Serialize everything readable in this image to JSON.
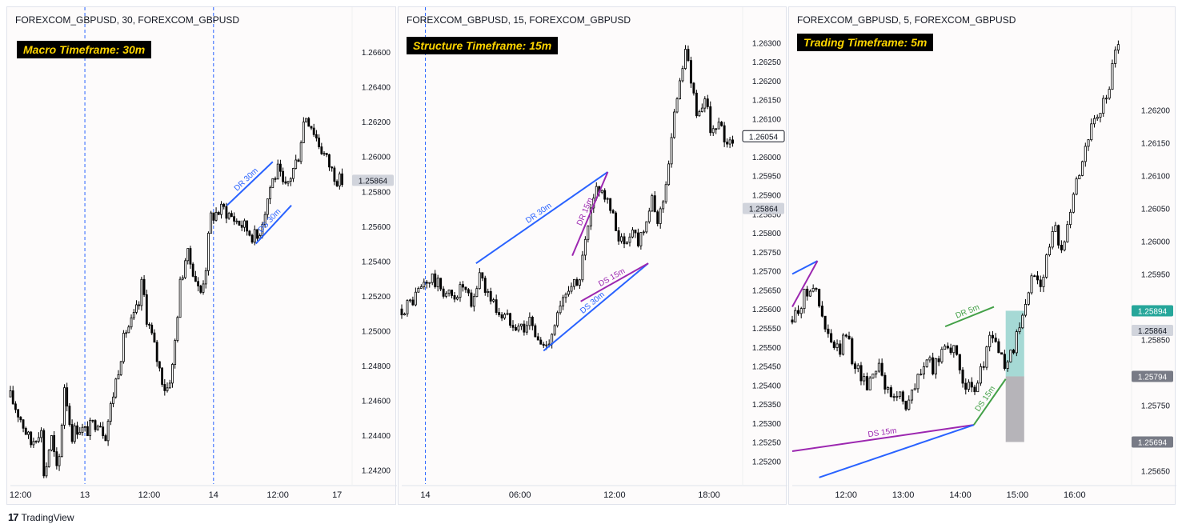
{
  "brand": {
    "logo": "17",
    "name": "TradingView"
  },
  "colors": {
    "up": "#ffffff",
    "down": "#000000",
    "wick": "#000000",
    "dr_blue": "#2962ff",
    "ds_purple": "#9c27b0",
    "ds_green": "#43a047",
    "session_line": "#2962ff",
    "zone_green": "#80cbc4",
    "zone_grey": "#a9a7ad"
  },
  "panels": [
    {
      "symbol": "FOREXCOM_GBPUSD, 30, FOREXCOM_GBPUSD",
      "timeframe_label": "Macro Timeframe: 30m",
      "chart_data": {
        "type": "candlestick",
        "y_ticks": [
          "1.26600",
          "1.26400",
          "1.26200",
          "1.26000",
          "1.25800",
          "1.25600",
          "1.25400",
          "1.25200",
          "1.25000",
          "1.24800",
          "1.24600",
          "1.24400",
          "1.24200"
        ],
        "ylim": [
          1.2412,
          1.2672
        ],
        "x_ticks": [
          "12:00",
          "13",
          "12:00",
          "14",
          "12:00",
          "17"
        ],
        "x_positions": [
          0.03,
          0.22,
          0.41,
          0.6,
          0.79,
          0.965
        ],
        "session_lines": [
          0.22,
          0.6
        ],
        "price_labels": [
          {
            "value": "1.25864",
            "price": 1.25864,
            "style": "grey"
          }
        ],
        "annotations": [
          {
            "text": "DR 30m",
            "color": "blue",
            "from": [
              0.64,
              1.2572
            ],
            "to": [
              0.775,
              1.2597
            ]
          },
          {
            "text": "DS 30m",
            "color": "blue",
            "from": [
              0.725,
              1.255
            ],
            "to": [
              0.83,
              1.2572
            ]
          }
        ],
        "path": [
          [
            0.0,
            1.2462
          ],
          [
            0.03,
            1.245
          ],
          [
            0.06,
            1.2435
          ],
          [
            0.09,
            1.2445
          ],
          [
            0.1,
            1.2415
          ],
          [
            0.12,
            1.244
          ],
          [
            0.14,
            1.2415
          ],
          [
            0.16,
            1.247
          ],
          [
            0.18,
            1.244
          ],
          [
            0.2,
            1.2445
          ],
          [
            0.22,
            1.2442
          ],
          [
            0.24,
            1.2445
          ],
          [
            0.26,
            1.245
          ],
          [
            0.28,
            1.244
          ],
          [
            0.3,
            1.246
          ],
          [
            0.32,
            1.248
          ],
          [
            0.34,
            1.25
          ],
          [
            0.36,
            1.2505
          ],
          [
            0.38,
            1.2515
          ],
          [
            0.39,
            1.253
          ],
          [
            0.4,
            1.251
          ],
          [
            0.42,
            1.2495
          ],
          [
            0.44,
            1.2478
          ],
          [
            0.46,
            1.2465
          ],
          [
            0.48,
            1.248
          ],
          [
            0.5,
            1.2525
          ],
          [
            0.52,
            1.2545
          ],
          [
            0.54,
            1.2535
          ],
          [
            0.56,
            1.252
          ],
          [
            0.58,
            1.254
          ],
          [
            0.59,
            1.2565
          ],
          [
            0.61,
            1.2568
          ],
          [
            0.63,
            1.257
          ],
          [
            0.65,
            1.2566
          ],
          [
            0.67,
            1.2563
          ],
          [
            0.69,
            1.256
          ],
          [
            0.71,
            1.2556
          ],
          [
            0.73,
            1.2553
          ],
          [
            0.75,
            1.2568
          ],
          [
            0.77,
            1.2585
          ],
          [
            0.79,
            1.2592
          ],
          [
            0.81,
            1.258
          ],
          [
            0.83,
            1.259
          ],
          [
            0.85,
            1.26
          ],
          [
            0.87,
            1.2625
          ],
          [
            0.89,
            1.2618
          ],
          [
            0.91,
            1.2608
          ],
          [
            0.93,
            1.26
          ],
          [
            0.95,
            1.2592
          ],
          [
            0.97,
            1.2586
          ],
          [
            0.98,
            1.2586
          ]
        ]
      }
    },
    {
      "symbol": "FOREXCOM_GBPUSD, 15, FOREXCOM_GBPUSD",
      "timeframe_label": "Structure Timeframe: 15m",
      "chart_data": {
        "type": "candlestick",
        "y_ticks": [
          "1.26300",
          "1.26250",
          "1.26200",
          "1.26150",
          "1.26100",
          "1.26050",
          "1.26000",
          "1.25950",
          "1.25900",
          "1.25850",
          "1.25800",
          "1.25750",
          "1.25700",
          "1.25650",
          "1.25600",
          "1.25550",
          "1.25500",
          "1.25450",
          "1.25400",
          "1.25350",
          "1.25300",
          "1.25250",
          "1.25200"
        ],
        "ylim": [
          1.2514,
          1.2633
        ],
        "x_ticks": [
          "14",
          "06:00",
          "12:00",
          "18:00"
        ],
        "x_positions": [
          0.07,
          0.35,
          0.63,
          0.91
        ],
        "session_lines": [
          0.07
        ],
        "price_labels": [
          {
            "value": "1.26054",
            "price": 1.26054,
            "style": "outline"
          },
          {
            "value": "1.25864",
            "price": 1.25864,
            "style": "grey"
          }
        ],
        "annotations": [
          {
            "text": "DR 30m",
            "color": "blue",
            "from": [
              0.22,
              1.2572
            ],
            "to": [
              0.61,
              1.2596
            ]
          },
          {
            "text": "DS 30m",
            "color": "blue",
            "from": [
              0.42,
              1.2549
            ],
            "to": [
              0.73,
              1.2572
            ]
          },
          {
            "text": "DR 15m",
            "color": "purple",
            "from": [
              0.505,
              1.2574
            ],
            "to": [
              0.61,
              1.2596
            ]
          },
          {
            "text": "DS 15m",
            "color": "purple",
            "from": [
              0.53,
              1.2562
            ],
            "to": [
              0.73,
              1.2572
            ]
          }
        ],
        "path": [
          [
            0.0,
            1.256
          ],
          [
            0.03,
            1.2562
          ],
          [
            0.06,
            1.2566
          ],
          [
            0.09,
            1.2568
          ],
          [
            0.12,
            1.2565
          ],
          [
            0.15,
            1.2563
          ],
          [
            0.18,
            1.2566
          ],
          [
            0.21,
            1.256
          ],
          [
            0.23,
            1.257
          ],
          [
            0.25,
            1.2565
          ],
          [
            0.28,
            1.256
          ],
          [
            0.3,
            1.2558
          ],
          [
            0.33,
            1.2557
          ],
          [
            0.36,
            1.2555
          ],
          [
            0.38,
            1.2557
          ],
          [
            0.4,
            1.2552
          ],
          [
            0.42,
            1.255
          ],
          [
            0.44,
            1.2553
          ],
          [
            0.46,
            1.2558
          ],
          [
            0.48,
            1.2562
          ],
          [
            0.5,
            1.2568
          ],
          [
            0.52,
            1.2565
          ],
          [
            0.54,
            1.2575
          ],
          [
            0.56,
            1.2585
          ],
          [
            0.58,
            1.2593
          ],
          [
            0.6,
            1.259
          ],
          [
            0.62,
            1.2585
          ],
          [
            0.64,
            1.258
          ],
          [
            0.66,
            1.2576
          ],
          [
            0.68,
            1.2582
          ],
          [
            0.7,
            1.2578
          ],
          [
            0.72,
            1.2583
          ],
          [
            0.74,
            1.2588
          ],
          [
            0.76,
            1.2583
          ],
          [
            0.78,
            1.2592
          ],
          [
            0.8,
            1.2605
          ],
          [
            0.82,
            1.262
          ],
          [
            0.84,
            1.2628
          ],
          [
            0.86,
            1.2618
          ],
          [
            0.88,
            1.261
          ],
          [
            0.9,
            1.2614
          ],
          [
            0.92,
            1.2606
          ],
          [
            0.94,
            1.2608
          ],
          [
            0.96,
            1.2604
          ],
          [
            0.98,
            1.2605
          ]
        ]
      }
    },
    {
      "symbol": "FOREXCOM_GBPUSD, 5, FOREXCOM_GBPUSD",
      "timeframe_label": "Trading Timeframe: 5m",
      "chart_data": {
        "type": "candlestick",
        "y_ticks": [
          "1.26200",
          "1.26150",
          "1.26100",
          "1.26050",
          "1.26000",
          "1.25950",
          "1.25850",
          "1.25750",
          "1.25650"
        ],
        "y_tick_values": [
          1.262,
          1.2615,
          1.261,
          1.2605,
          1.26,
          1.2595,
          1.2585,
          1.2575,
          1.2565
        ],
        "ylim": [
          1.2563,
          1.2632
        ],
        "x_ticks": [
          "12:00",
          "13:00",
          "14:00",
          "15:00",
          "16:00"
        ],
        "x_positions": [
          0.16,
          0.33,
          0.5,
          0.67,
          0.84
        ],
        "session_lines": [],
        "price_labels": [
          {
            "value": "1.25894",
            "price": 1.25894,
            "style": "teal"
          },
          {
            "value": "1.25864",
            "price": 1.25864,
            "style": "grey"
          },
          {
            "value": "1.25794",
            "price": 1.25794,
            "style": "dark"
          },
          {
            "value": "1.25694",
            "price": 1.25694,
            "style": "dark"
          }
        ],
        "zones": [
          {
            "color": "green",
            "x0": 0.635,
            "x1": 0.69,
            "p0": 1.25794,
            "p1": 1.25894
          },
          {
            "color": "grey",
            "x0": 0.635,
            "x1": 0.69,
            "p0": 1.25694,
            "p1": 1.25794
          }
        ],
        "annotations": [
          {
            "text": "",
            "color": "blue",
            "from": [
              0.0,
              1.2595
            ],
            "to": [
              0.075,
              1.2597
            ]
          },
          {
            "text": "",
            "color": "purple",
            "from": [
              0.0,
              1.259
            ],
            "to": [
              0.075,
              1.2597
            ]
          },
          {
            "text": "DR 5m",
            "color": "green",
            "from": [
              0.455,
              1.2587
            ],
            "to": [
              0.6,
              1.259
            ]
          },
          {
            "text": "DS 15m",
            "color": "purple",
            "from": [
              0.0,
              1.2568
            ],
            "to": [
              0.54,
              1.2572
            ]
          },
          {
            "text": "",
            "color": "blue",
            "from": [
              0.08,
              1.2564
            ],
            "to": [
              0.54,
              1.2572
            ]
          },
          {
            "text": "DS 15m",
            "color": "green",
            "from": [
              0.54,
              1.2572
            ],
            "to": [
              0.635,
              1.2579
            ]
          }
        ],
        "path": [
          [
            0.0,
            1.2588
          ],
          [
            0.02,
            1.259
          ],
          [
            0.04,
            1.2592
          ],
          [
            0.06,
            1.2594
          ],
          [
            0.08,
            1.259
          ],
          [
            0.1,
            1.2586
          ],
          [
            0.12,
            1.2584
          ],
          [
            0.14,
            1.2583
          ],
          [
            0.16,
            1.2586
          ],
          [
            0.18,
            1.2582
          ],
          [
            0.2,
            1.258
          ],
          [
            0.22,
            1.2578
          ],
          [
            0.24,
            1.258
          ],
          [
            0.26,
            1.2582
          ],
          [
            0.28,
            1.2577
          ],
          [
            0.3,
            1.2576
          ],
          [
            0.32,
            1.2577
          ],
          [
            0.34,
            1.2575
          ],
          [
            0.36,
            1.2577
          ],
          [
            0.38,
            1.258
          ],
          [
            0.4,
            1.2582
          ],
          [
            0.42,
            1.258
          ],
          [
            0.44,
            1.2583
          ],
          [
            0.46,
            1.2585
          ],
          [
            0.48,
            1.2583
          ],
          [
            0.5,
            1.258
          ],
          [
            0.52,
            1.2578
          ],
          [
            0.54,
            1.2576
          ],
          [
            0.56,
            1.258
          ],
          [
            0.58,
            1.2584
          ],
          [
            0.6,
            1.2586
          ],
          [
            0.62,
            1.2582
          ],
          [
            0.64,
            1.2581
          ],
          [
            0.66,
            1.2584
          ],
          [
            0.68,
            1.2587
          ],
          [
            0.7,
            1.2592
          ],
          [
            0.72,
            1.2595
          ],
          [
            0.74,
            1.2594
          ],
          [
            0.76,
            1.2598
          ],
          [
            0.78,
            1.2602
          ],
          [
            0.8,
            1.2598
          ],
          [
            0.82,
            1.2604
          ],
          [
            0.84,
            1.2608
          ],
          [
            0.86,
            1.2612
          ],
          [
            0.88,
            1.2616
          ],
          [
            0.9,
            1.2618
          ],
          [
            0.92,
            1.262
          ],
          [
            0.94,
            1.2623
          ],
          [
            0.96,
            1.2628
          ],
          [
            0.97,
            1.263
          ]
        ]
      }
    }
  ]
}
